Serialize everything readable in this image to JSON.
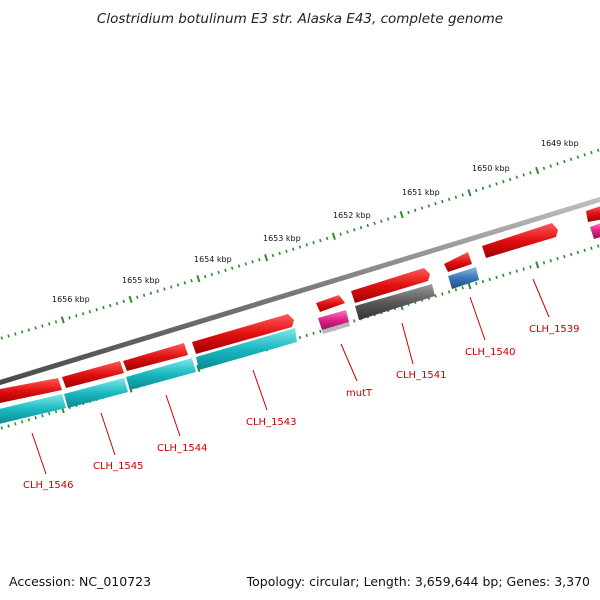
{
  "title": "Clostridium botulinum E3 str. Alaska E43, complete genome",
  "footer": {
    "accession": "Accession: NC_010723",
    "summary": "Topology: circular; Length: 3,659,644 bp; Genes: 3,370"
  },
  "colors": {
    "backbone": "#8a8a8a",
    "tick": "#2e8b2e",
    "gene_red": "#e01010",
    "gene_cyan": "#1ab8c0",
    "gene_magenta": "#e0208a",
    "gene_gray": "#5a5a5a",
    "gene_blue": "#3a78b8",
    "label": "#cc0000"
  },
  "kbp_labels": [
    "1649 kbp",
    "1650 kbp",
    "1651 kbp",
    "1652 kbp",
    "1653 kbp",
    "1654 kbp",
    "1655 kbp",
    "1656 kbp"
  ],
  "genes": [
    {
      "label": "CLH_1539"
    },
    {
      "label": "CLH_1540"
    },
    {
      "label": "CLH_1541"
    },
    {
      "label": "mutT"
    },
    {
      "label": "CLH_1543"
    },
    {
      "label": "CLH_1544"
    },
    {
      "label": "CLH_1545"
    },
    {
      "label": "CLH_1546"
    }
  ]
}
